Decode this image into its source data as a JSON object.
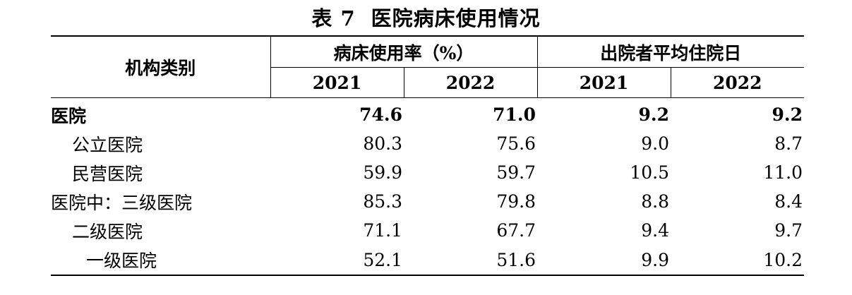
{
  "table": {
    "title_no": "表 7",
    "title": "医院病床使用情况",
    "corner_label": "机构类别",
    "group1_label": "病床使用率（%）",
    "group2_label": "出院者平均住院日",
    "years": [
      "2021",
      "2022",
      "2021",
      "2022"
    ],
    "rows": [
      {
        "label": "医院",
        "values": [
          "74.6",
          "71.0",
          "9.2",
          "9.2"
        ]
      },
      {
        "label": "公立医院",
        "values": [
          "80.3",
          "75.6",
          "9.0",
          "8.7"
        ]
      },
      {
        "label": "民营医院",
        "values": [
          "59.9",
          "59.7",
          "10.5",
          "11.0"
        ]
      },
      {
        "label": "医院中：三级医院",
        "values": [
          "85.3",
          "79.8",
          "8.8",
          "8.4"
        ]
      },
      {
        "label": "二级医院",
        "values": [
          "71.1",
          "67.7",
          "9.4",
          "9.7"
        ]
      },
      {
        "label": "一级医院",
        "values": [
          "52.1",
          "51.6",
          "9.9",
          "10.2"
        ]
      }
    ]
  }
}
